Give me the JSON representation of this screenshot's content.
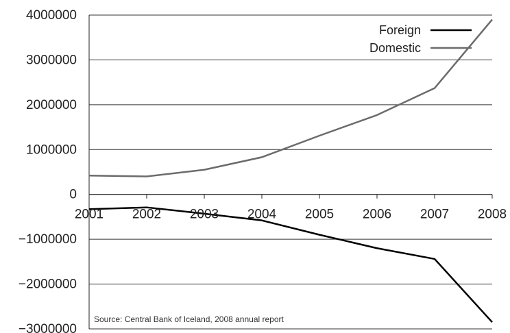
{
  "chart_data": {
    "type": "line",
    "x": [
      2001,
      2002,
      2003,
      2004,
      2005,
      2006,
      2007,
      2008
    ],
    "x_tick_labels": [
      "2001",
      "2002",
      "2003",
      "2004",
      "2005",
      "2006",
      "2007",
      "2008"
    ],
    "series": [
      {
        "name": "Foreign",
        "color": "#000000",
        "values": [
          -330000,
          -290000,
          -430000,
          -580000,
          -900000,
          -1200000,
          -1440000,
          -2850000
        ]
      },
      {
        "name": "Domestic",
        "color": "#6b6b6b",
        "values": [
          420000,
          400000,
          550000,
          830000,
          1310000,
          1770000,
          2370000,
          3900000
        ]
      }
    ],
    "y_ticks": [
      4000000,
      3000000,
      2000000,
      1000000,
      0,
      -1000000,
      -2000000,
      -3000000
    ],
    "y_tick_labels": [
      "4000000",
      "3000000",
      "2000000",
      "1000000",
      "0",
      "−1000000",
      "−2000000",
      "−3000000"
    ],
    "ylim": [
      -3000000,
      4000000
    ],
    "xlim": [
      2001,
      2008
    ],
    "grid": true,
    "legend_position": "top-right",
    "source": "Source: Central Bank of Iceland, 2008 annual report"
  }
}
